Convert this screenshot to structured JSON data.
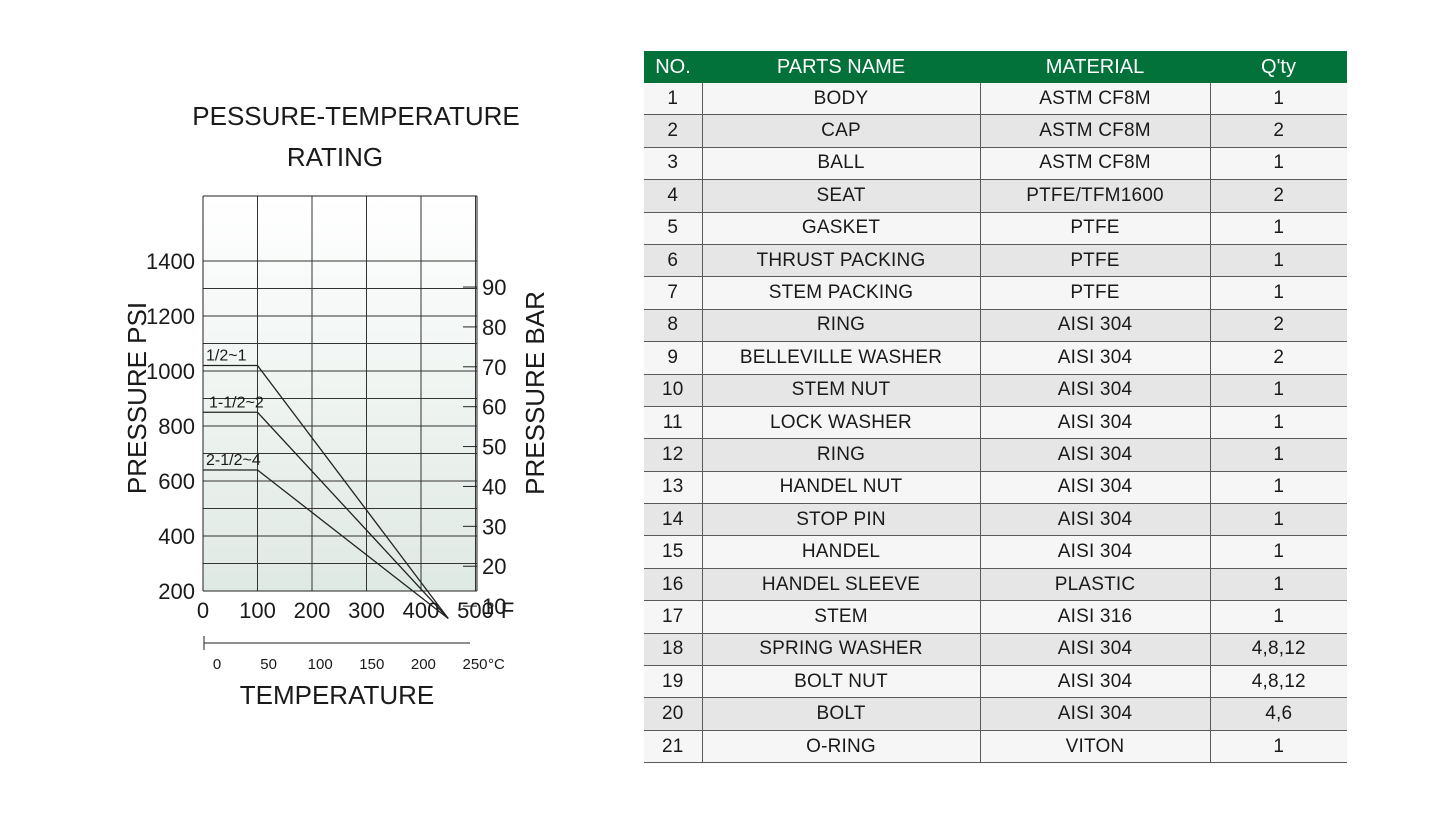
{
  "chart_data": {
    "type": "line",
    "title": "PESSURE-TEMPERATURE",
    "subtitle": "RATING",
    "ylabel": "PRESSURE PSI",
    "y2label": "PRESSURE BAR",
    "xlabel": "TEMPERATURE",
    "x_unit": "° F",
    "x2_unit": "°C",
    "ylim": [
      0,
      1400
    ],
    "xlim": [
      0,
      500
    ],
    "y_ticks": [
      200,
      400,
      600,
      800,
      1000,
      1200,
      1400
    ],
    "y2_ticks": [
      10,
      20,
      30,
      40,
      50,
      60,
      70,
      80,
      90
    ],
    "x_ticks": [
      0,
      100,
      200,
      300,
      400,
      500
    ],
    "x2_ticks": [
      0,
      50,
      100,
      150,
      200,
      250
    ],
    "grid": true,
    "series": [
      {
        "name": "1/2~1",
        "x": [
          0,
          100,
          450
        ],
        "y": [
          1020,
          1020,
          100
        ]
      },
      {
        "name": "1-1/2~2",
        "x": [
          0,
          100,
          450
        ],
        "y": [
          850,
          850,
          100
        ]
      },
      {
        "name": "2-1/2~4",
        "x": [
          0,
          100,
          450
        ],
        "y": [
          640,
          640,
          100
        ]
      }
    ]
  },
  "table": {
    "headers": [
      "NO.",
      "PARTS NAME",
      "MATERIAL",
      "Q'ty"
    ],
    "rows": [
      [
        "1",
        "BODY",
        "ASTM CF8M",
        "1"
      ],
      [
        "2",
        "CAP",
        "ASTM CF8M",
        "2"
      ],
      [
        "3",
        "BALL",
        "ASTM CF8M",
        "1"
      ],
      [
        "4",
        "SEAT",
        "PTFE/TFM1600",
        "2"
      ],
      [
        "5",
        "GASKET",
        "PTFE",
        "1"
      ],
      [
        "6",
        "THRUST PACKING",
        "PTFE",
        "1"
      ],
      [
        "7",
        "STEM PACKING",
        "PTFE",
        "1"
      ],
      [
        "8",
        "RING",
        "AISI 304",
        "2"
      ],
      [
        "9",
        "BELLEVILLE WASHER",
        "AISI 304",
        "2"
      ],
      [
        "10",
        "STEM NUT",
        "AISI 304",
        "1"
      ],
      [
        "11",
        "LOCK WASHER",
        "AISI 304",
        "1"
      ],
      [
        "12",
        "RING",
        "AISI 304",
        "1"
      ],
      [
        "13",
        "HANDEL NUT",
        "AISI 304",
        "1"
      ],
      [
        "14",
        "STOP PIN",
        "AISI 304",
        "1"
      ],
      [
        "15",
        "HANDEL",
        "AISI 304",
        "1"
      ],
      [
        "16",
        "HANDEL SLEEVE",
        "PLASTIC",
        "1"
      ],
      [
        "17",
        "STEM",
        "AISI 316",
        "1"
      ],
      [
        "18",
        "SPRING WASHER",
        "AISI 304",
        "4,8,12"
      ],
      [
        "19",
        "BOLT NUT",
        "AISI 304",
        "4,8,12"
      ],
      [
        "20",
        "BOLT",
        "AISI 304",
        "4,6"
      ],
      [
        "21",
        "O-RING",
        "VITON",
        "1"
      ]
    ]
  },
  "colors": {
    "header_green": "#03713a",
    "row_light": "#f6f6f6",
    "row_dark": "#e6e6e6",
    "plot_gradient_top": "#ffffff",
    "plot_gradient_bottom": "#dfe9e3"
  }
}
